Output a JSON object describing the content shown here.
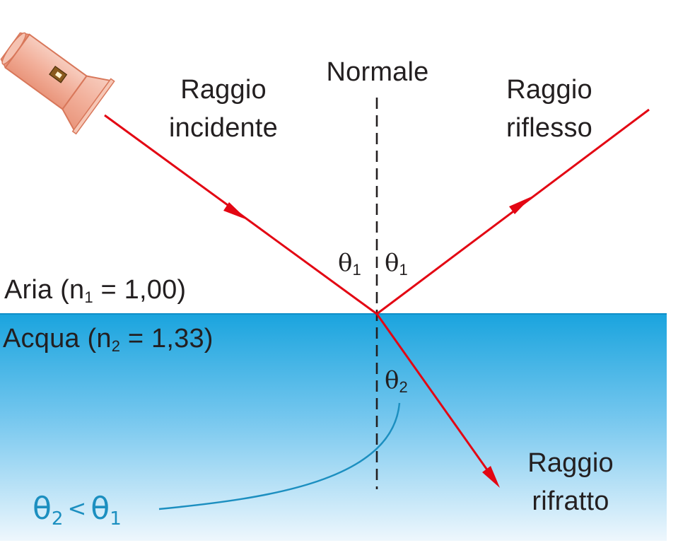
{
  "labels": {
    "normal": "Normale",
    "incident_line1": "Raggio",
    "incident_line2": "incidente",
    "reflected_line1": "Raggio",
    "reflected_line2": "riflesso",
    "refracted_line1": "Raggio",
    "refracted_line2": "rifratto",
    "air_name": "Aria (n",
    "air_sub": "1",
    "air_value": " = 1,00)",
    "water_name": "Acqua (n",
    "water_sub": "2",
    "water_value": " = 1,33)"
  },
  "angles": {
    "theta": "θ",
    "incident_sub": "1",
    "reflected_sub": "1",
    "refracted_sub": "2",
    "comparison_sub_left": "2",
    "comparison_op": "<",
    "comparison_sub_right": "1"
  },
  "colors": {
    "ray": "#e30613",
    "water_top": "#1aa4de",
    "water_bottom": "#eef7fd",
    "comparison": "#1c8fc0",
    "flashlight_body": "#f2b7a7",
    "flashlight_outline": "#e08567"
  },
  "icons": {
    "light_source": "flashlight-icon"
  }
}
